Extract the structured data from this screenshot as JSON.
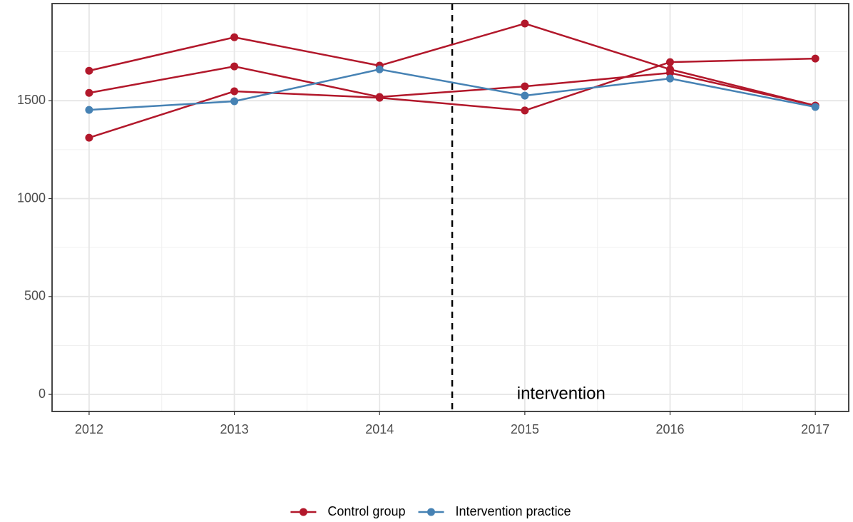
{
  "chart_data": {
    "type": "line",
    "x": [
      2012,
      2013,
      2014,
      2015,
      2016,
      2017
    ],
    "series": [
      {
        "name": "Control group",
        "color": "#b2182b",
        "values": [
          1653,
          1824,
          1679,
          1894,
          1660,
          1475
        ]
      },
      {
        "name": "Control group",
        "color": "#b2182b",
        "values": [
          1540,
          1675,
          1519,
          1573,
          1642,
          1475
        ]
      },
      {
        "name": "Control group",
        "color": "#b2182b",
        "values": [
          1311,
          1548,
          1515,
          1450,
          1697,
          1715
        ]
      },
      {
        "name": "Intervention practice",
        "color": "#4682b4",
        "values": [
          1453,
          1497,
          1660,
          1526,
          1613,
          1468
        ]
      }
    ],
    "xlim": [
      2011.745,
      2017.23
    ],
    "xticks": [
      2012,
      2013,
      2014,
      2015,
      2016,
      2017
    ],
    "ylim": [
      -87,
      1996
    ],
    "yticks": [
      0,
      500,
      1000,
      1500
    ],
    "grid": true,
    "vline": {
      "x": 2014.5,
      "style": "dashed"
    },
    "annotation": {
      "text": "intervention",
      "x": 2015.25,
      "y": 0
    },
    "legend_position": "bottom"
  }
}
